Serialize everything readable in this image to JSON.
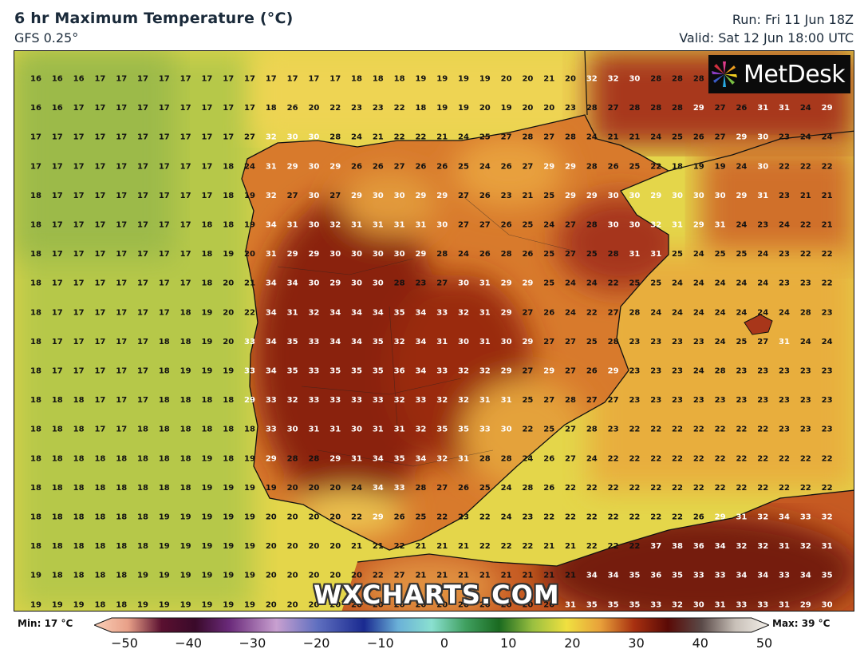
{
  "header": {
    "title": "6 hr Maximum Temperature (°C)",
    "model": "GFS 0.25°",
    "run": "Run: Fri 11 Jun 18Z",
    "valid": "Valid: Sat 12 Jun 18:00 UTC"
  },
  "logo": {
    "text": "MetDesk",
    "icon": "metdesk-pinwheel-icon"
  },
  "watermark": "WXCHARTS.COM",
  "legend": {
    "min_label": "Min: 17 °C",
    "max_label": "Max: 39 °C",
    "ticks": [
      "−50",
      "−40",
      "−30",
      "−20",
      "−10",
      "0",
      "10",
      "20",
      "30",
      "40",
      "50"
    ],
    "range": [
      -50,
      50
    ]
  },
  "grid": {
    "rows": [
      [
        16,
        16,
        16,
        17,
        17,
        17,
        17,
        17,
        17,
        17,
        17,
        17,
        17,
        17,
        17,
        18,
        18,
        18,
        19,
        19,
        19,
        19,
        20,
        20,
        21,
        20,
        32,
        32,
        30,
        28,
        28,
        28,
        null,
        null,
        null,
        null,
        null,
        null,
        null,
        null
      ],
      [
        16,
        16,
        17,
        17,
        17,
        17,
        17,
        17,
        17,
        17,
        17,
        18,
        26,
        20,
        22,
        23,
        23,
        22,
        18,
        19,
        19,
        20,
        19,
        20,
        20,
        23,
        28,
        27,
        28,
        28,
        28,
        29,
        27,
        26,
        31,
        31,
        24,
        29,
        null,
        null
      ],
      [
        17,
        17,
        17,
        17,
        17,
        17,
        17,
        17,
        17,
        17,
        27,
        32,
        30,
        30,
        28,
        24,
        21,
        22,
        22,
        21,
        24,
        25,
        27,
        28,
        27,
        28,
        24,
        21,
        21,
        24,
        25,
        26,
        27,
        29,
        30,
        23,
        24,
        24,
        null,
        null
      ],
      [
        17,
        17,
        17,
        17,
        17,
        17,
        17,
        17,
        17,
        18,
        24,
        31,
        29,
        30,
        29,
        26,
        26,
        27,
        26,
        26,
        25,
        24,
        26,
        27,
        29,
        29,
        28,
        26,
        25,
        22,
        18,
        19,
        19,
        24,
        30,
        22,
        22,
        22,
        null,
        null
      ],
      [
        18,
        17,
        17,
        17,
        17,
        17,
        17,
        17,
        17,
        18,
        19,
        32,
        27,
        30,
        27,
        29,
        30,
        30,
        29,
        29,
        27,
        26,
        23,
        21,
        25,
        29,
        29,
        30,
        30,
        29,
        30,
        30,
        30,
        29,
        31,
        23,
        21,
        21,
        null,
        null
      ],
      [
        18,
        17,
        17,
        17,
        17,
        17,
        17,
        17,
        18,
        18,
        19,
        34,
        31,
        30,
        32,
        31,
        31,
        31,
        31,
        30,
        27,
        27,
        26,
        25,
        24,
        27,
        28,
        30,
        30,
        32,
        31,
        29,
        31,
        24,
        23,
        24,
        22,
        21,
        null,
        null
      ],
      [
        18,
        17,
        17,
        17,
        17,
        17,
        17,
        17,
        18,
        19,
        20,
        31,
        29,
        29,
        30,
        30,
        30,
        30,
        29,
        28,
        24,
        26,
        28,
        26,
        25,
        27,
        25,
        28,
        31,
        31,
        25,
        24,
        25,
        25,
        24,
        23,
        22,
        22,
        null,
        null
      ],
      [
        18,
        17,
        17,
        17,
        17,
        17,
        17,
        17,
        18,
        20,
        21,
        34,
        34,
        30,
        29,
        30,
        30,
        28,
        23,
        27,
        30,
        31,
        29,
        29,
        25,
        24,
        24,
        22,
        25,
        25,
        24,
        24,
        24,
        24,
        24,
        23,
        23,
        22,
        null,
        null
      ],
      [
        18,
        17,
        17,
        17,
        17,
        17,
        17,
        18,
        19,
        20,
        22,
        34,
        31,
        32,
        34,
        34,
        34,
        35,
        34,
        33,
        32,
        31,
        29,
        27,
        26,
        24,
        22,
        27,
        28,
        24,
        24,
        24,
        24,
        24,
        24,
        24,
        28,
        23,
        null,
        null
      ],
      [
        18,
        17,
        17,
        17,
        17,
        17,
        18,
        18,
        19,
        20,
        33,
        34,
        35,
        33,
        34,
        34,
        35,
        32,
        34,
        31,
        30,
        31,
        30,
        29,
        27,
        27,
        25,
        28,
        23,
        23,
        23,
        23,
        24,
        25,
        27,
        31,
        24,
        24,
        null,
        null
      ],
      [
        18,
        17,
        17,
        17,
        17,
        17,
        18,
        19,
        19,
        19,
        33,
        34,
        35,
        33,
        35,
        35,
        35,
        36,
        34,
        33,
        32,
        32,
        29,
        27,
        29,
        27,
        26,
        29,
        23,
        23,
        23,
        24,
        28,
        23,
        23,
        23,
        23,
        23,
        null,
        null
      ],
      [
        18,
        18,
        18,
        17,
        17,
        17,
        18,
        18,
        18,
        18,
        29,
        33,
        32,
        33,
        33,
        33,
        33,
        32,
        33,
        32,
        32,
        31,
        31,
        25,
        27,
        28,
        27,
        27,
        23,
        23,
        23,
        23,
        23,
        23,
        23,
        23,
        23,
        23,
        null,
        null
      ],
      [
        18,
        18,
        18,
        17,
        17,
        18,
        18,
        18,
        18,
        18,
        18,
        33,
        30,
        31,
        31,
        30,
        31,
        31,
        32,
        35,
        35,
        33,
        30,
        22,
        25,
        27,
        28,
        23,
        22,
        22,
        22,
        22,
        22,
        22,
        22,
        23,
        23,
        23,
        null,
        null
      ],
      [
        18,
        18,
        18,
        18,
        18,
        18,
        18,
        18,
        19,
        18,
        19,
        29,
        28,
        28,
        29,
        31,
        34,
        35,
        34,
        32,
        31,
        28,
        28,
        24,
        26,
        27,
        24,
        22,
        22,
        22,
        22,
        22,
        22,
        22,
        22,
        22,
        22,
        22,
        null,
        null
      ],
      [
        18,
        18,
        18,
        18,
        18,
        18,
        18,
        18,
        19,
        19,
        19,
        19,
        20,
        20,
        20,
        24,
        34,
        33,
        28,
        27,
        26,
        25,
        24,
        28,
        26,
        22,
        22,
        22,
        22,
        22,
        22,
        22,
        22,
        22,
        22,
        22,
        22,
        22,
        null,
        null
      ],
      [
        18,
        18,
        18,
        18,
        18,
        18,
        19,
        19,
        19,
        19,
        19,
        20,
        20,
        20,
        20,
        22,
        29,
        26,
        25,
        22,
        23,
        22,
        24,
        23,
        22,
        22,
        22,
        22,
        22,
        22,
        22,
        26,
        29,
        31,
        32,
        34,
        33,
        32,
        null,
        null
      ],
      [
        18,
        18,
        18,
        18,
        18,
        18,
        19,
        19,
        19,
        19,
        19,
        20,
        20,
        20,
        20,
        21,
        21,
        22,
        21,
        21,
        21,
        22,
        22,
        22,
        21,
        21,
        22,
        22,
        22,
        37,
        38,
        36,
        34,
        32,
        32,
        31,
        32,
        31,
        null,
        null
      ],
      [
        19,
        18,
        18,
        18,
        18,
        19,
        19,
        19,
        19,
        19,
        19,
        20,
        20,
        20,
        20,
        20,
        22,
        27,
        21,
        21,
        21,
        21,
        21,
        21,
        21,
        21,
        34,
        34,
        35,
        36,
        35,
        33,
        33,
        34,
        34,
        33,
        34,
        35,
        null,
        null
      ],
      [
        19,
        19,
        19,
        18,
        18,
        19,
        19,
        19,
        19,
        19,
        19,
        20,
        20,
        20,
        20,
        20,
        20,
        20,
        20,
        20,
        20,
        20,
        20,
        20,
        20,
        31,
        35,
        35,
        35,
        33,
        32,
        30,
        31,
        33,
        33,
        31,
        29,
        30,
        null,
        null
      ]
    ]
  },
  "colors": {
    "ocean_cool": "#a8c24a",
    "ocean_mild": "#e8d84c",
    "land_warm": "#e8a43a",
    "land_hot": "#c8561e",
    "land_very_hot": "#7a1e0e",
    "coastline": "#111111"
  }
}
